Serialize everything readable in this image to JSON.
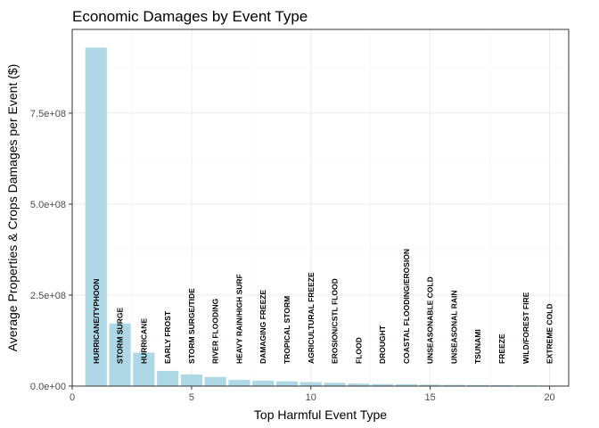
{
  "chart_data": {
    "type": "bar",
    "title": "Economic Damages by Event Type",
    "xlabel": "Top Harmful Event Type",
    "ylabel": "Average Properties & Crops Damages per Event ($)",
    "xlim": [
      0,
      20.8
    ],
    "ylim": [
      0,
      980000000
    ],
    "x_ticks": [
      0,
      5,
      10,
      15,
      20
    ],
    "x_tick_labels": [
      "0",
      "5",
      "10",
      "15",
      "20"
    ],
    "y_ticks": [
      0,
      250000000,
      500000000,
      750000000
    ],
    "y_tick_labels": [
      "0.0e+00",
      "2.5e+08",
      "5.0e+08",
      "7.5e+08"
    ],
    "grid": true,
    "bar_color": "#add8e6",
    "categories": [
      "HURRICANE/TYPHOON",
      "STORM SURGE",
      "HURRICANE",
      "EARLY FROST",
      "STORM SURGE/TIDE",
      "RIVER FLOODING",
      "HEAVY RAIN/HIGH SURF",
      "DAMAGING FREEZE",
      "TROPICAL STORM",
      "AGRICULTURAL FREEZE",
      "EROSION/CSTL FLOOD",
      "FLOOD",
      "DROUGHT",
      "COASTAL FLOODING/EROSION",
      "UNSEASONABLE COLD",
      "UNSEASONAL RAIN",
      "TSUNAMI",
      "FREEZE",
      "WILD/FOREST FIRE",
      "EXTREME COLD"
    ],
    "x": [
      1,
      2,
      3,
      4,
      5,
      6,
      7,
      8,
      9,
      10,
      11,
      12,
      13,
      14,
      15,
      16,
      17,
      18,
      19,
      20
    ],
    "values": [
      930000000,
      172000000,
      92000000,
      42000000,
      32000000,
      25000000,
      17000000,
      15000000,
      13000000,
      11000000,
      9000000,
      7000000,
      5500000,
      5000000,
      4000000,
      3500000,
      3000000,
      2500000,
      2000000,
      1500000
    ]
  }
}
